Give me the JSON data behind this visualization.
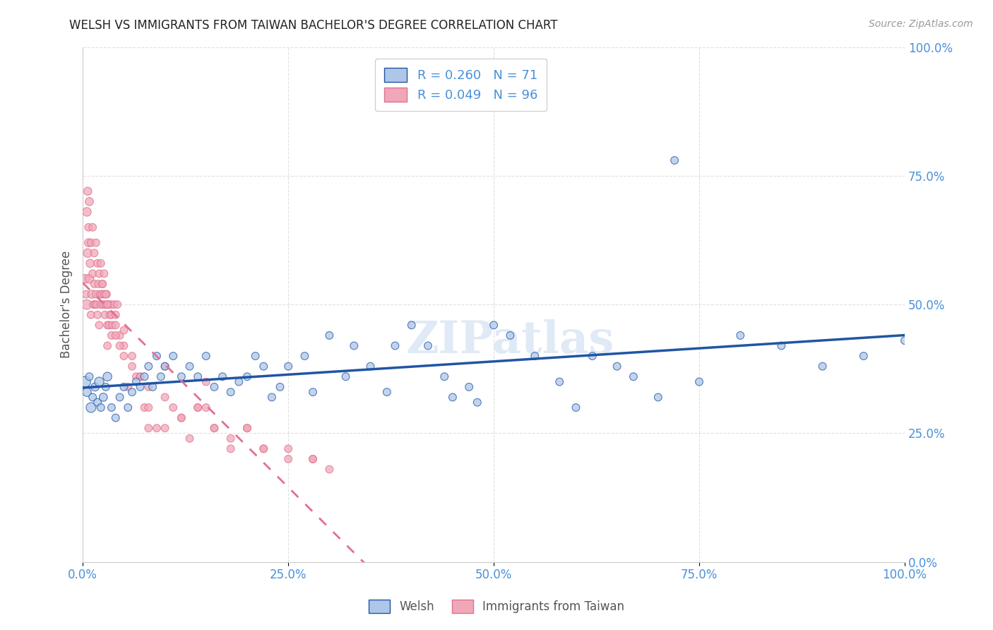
{
  "title": "WELSH VS IMMIGRANTS FROM TAIWAN BACHELOR'S DEGREE CORRELATION CHART",
  "source": "Source: ZipAtlas.com",
  "ylabel": "Bachelor's Degree",
  "legend_welsh": "Welsh",
  "legend_taiwan": "Immigrants from Taiwan",
  "welsh_R": "0.260",
  "welsh_N": "71",
  "taiwan_R": "0.049",
  "taiwan_N": "96",
  "welsh_color": "#aec6e8",
  "taiwan_color": "#f0a8b8",
  "welsh_line_color": "#2055a4",
  "taiwan_line_color": "#e07090",
  "watermark": "ZIPatlas",
  "welsh_x": [
    0.3,
    0.5,
    0.8,
    1.0,
    1.2,
    1.5,
    1.8,
    2.0,
    2.2,
    2.5,
    2.8,
    3.0,
    3.5,
    4.0,
    4.5,
    5.0,
    5.5,
    6.0,
    6.5,
    7.0,
    7.5,
    8.0,
    8.5,
    9.0,
    9.5,
    10.0,
    11.0,
    12.0,
    13.0,
    14.0,
    15.0,
    16.0,
    17.0,
    18.0,
    19.0,
    20.0,
    21.0,
    22.0,
    23.0,
    24.0,
    25.0,
    27.0,
    28.0,
    30.0,
    32.0,
    33.0,
    35.0,
    37.0,
    38.0,
    40.0,
    42.0,
    44.0,
    45.0,
    47.0,
    48.0,
    50.0,
    52.0,
    55.0,
    58.0,
    60.0,
    62.0,
    65.0,
    67.0,
    70.0,
    72.0,
    75.0,
    80.0,
    85.0,
    90.0,
    95.0,
    100.0
  ],
  "welsh_y": [
    35.0,
    33.0,
    36.0,
    30.0,
    32.0,
    34.0,
    31.0,
    35.0,
    30.0,
    32.0,
    34.0,
    36.0,
    30.0,
    28.0,
    32.0,
    34.0,
    30.0,
    33.0,
    35.0,
    34.0,
    36.0,
    38.0,
    34.0,
    40.0,
    36.0,
    38.0,
    40.0,
    36.0,
    38.0,
    36.0,
    40.0,
    34.0,
    36.0,
    33.0,
    35.0,
    36.0,
    40.0,
    38.0,
    32.0,
    34.0,
    38.0,
    40.0,
    33.0,
    44.0,
    36.0,
    42.0,
    38.0,
    33.0,
    42.0,
    46.0,
    42.0,
    36.0,
    32.0,
    34.0,
    31.0,
    46.0,
    44.0,
    40.0,
    35.0,
    30.0,
    40.0,
    38.0,
    36.0,
    32.0,
    78.0,
    35.0,
    44.0,
    42.0,
    38.0,
    40.0,
    43.0
  ],
  "welsh_size": [
    120,
    80,
    60,
    100,
    60,
    70,
    60,
    90,
    60,
    70,
    60,
    80,
    60,
    60,
    60,
    60,
    60,
    60,
    60,
    60,
    60,
    60,
    60,
    60,
    60,
    60,
    60,
    60,
    60,
    60,
    60,
    60,
    60,
    60,
    60,
    60,
    60,
    60,
    60,
    60,
    60,
    60,
    60,
    60,
    60,
    60,
    60,
    60,
    60,
    60,
    60,
    60,
    60,
    60,
    60,
    60,
    60,
    60,
    60,
    60,
    60,
    60,
    60,
    60,
    60,
    60,
    60,
    60,
    60,
    60,
    60
  ],
  "taiwan_x": [
    0.3,
    0.4,
    0.5,
    0.6,
    0.7,
    0.8,
    0.9,
    1.0,
    1.1,
    1.2,
    1.3,
    1.4,
    1.5,
    1.6,
    1.7,
    1.8,
    1.9,
    2.0,
    2.1,
    2.2,
    2.3,
    2.4,
    2.5,
    2.6,
    2.7,
    2.8,
    2.9,
    3.0,
    3.1,
    3.2,
    3.3,
    3.4,
    3.5,
    3.6,
    3.8,
    4.0,
    4.2,
    4.5,
    5.0,
    5.5,
    6.0,
    6.5,
    7.0,
    7.5,
    8.0,
    9.0,
    10.0,
    11.0,
    12.0,
    13.0,
    14.0,
    15.0,
    16.0,
    18.0,
    20.0,
    22.0,
    25.0,
    28.0,
    30.0,
    0.5,
    0.6,
    0.7,
    0.8,
    1.0,
    1.2,
    1.4,
    1.6,
    1.8,
    2.0,
    2.2,
    2.4,
    2.6,
    2.8,
    3.0,
    3.5,
    4.0,
    4.5,
    5.0,
    6.0,
    7.0,
    8.0,
    10.0,
    12.0,
    14.0,
    16.0,
    18.0,
    20.0,
    22.0,
    25.0,
    28.0,
    5.0,
    15.0,
    10.0,
    8.0,
    4.0,
    3.0
  ],
  "taiwan_y": [
    55.0,
    52.0,
    50.0,
    60.0,
    62.0,
    55.0,
    58.0,
    48.0,
    52.0,
    56.0,
    50.0,
    54.0,
    50.0,
    52.0,
    50.0,
    48.0,
    54.0,
    46.0,
    52.0,
    50.0,
    52.0,
    54.0,
    50.0,
    52.0,
    48.0,
    50.0,
    52.0,
    46.0,
    50.0,
    46.0,
    48.0,
    50.0,
    44.0,
    46.0,
    50.0,
    46.0,
    50.0,
    44.0,
    42.0,
    34.0,
    40.0,
    36.0,
    36.0,
    30.0,
    26.0,
    26.0,
    26.0,
    30.0,
    28.0,
    24.0,
    30.0,
    30.0,
    26.0,
    22.0,
    26.0,
    22.0,
    20.0,
    20.0,
    18.0,
    68.0,
    72.0,
    65.0,
    70.0,
    62.0,
    65.0,
    60.0,
    62.0,
    58.0,
    56.0,
    58.0,
    54.0,
    56.0,
    52.0,
    50.0,
    48.0,
    44.0,
    42.0,
    40.0,
    38.0,
    36.0,
    34.0,
    32.0,
    28.0,
    30.0,
    26.0,
    24.0,
    26.0,
    22.0,
    22.0,
    20.0,
    45.0,
    35.0,
    38.0,
    30.0,
    48.0,
    42.0
  ],
  "taiwan_size": [
    80,
    60,
    100,
    80,
    70,
    80,
    70,
    60,
    70,
    60,
    60,
    60,
    60,
    60,
    60,
    60,
    60,
    60,
    60,
    60,
    60,
    60,
    60,
    60,
    60,
    60,
    60,
    60,
    60,
    60,
    60,
    60,
    60,
    60,
    60,
    60,
    60,
    60,
    60,
    60,
    60,
    60,
    60,
    60,
    60,
    60,
    60,
    60,
    60,
    60,
    60,
    60,
    60,
    60,
    60,
    60,
    60,
    60,
    60,
    80,
    70,
    60,
    70,
    60,
    60,
    60,
    60,
    60,
    60,
    60,
    60,
    60,
    60,
    60,
    60,
    60,
    60,
    60,
    60,
    60,
    60,
    60,
    60,
    60,
    60,
    60,
    60,
    60,
    60,
    60,
    60,
    60,
    60,
    60,
    60,
    60
  ],
  "xlim": [
    0,
    100
  ],
  "ylim": [
    0,
    100
  ],
  "xticks": [
    0,
    25,
    50,
    75,
    100
  ],
  "yticks": [
    0,
    25,
    50,
    75,
    100
  ],
  "background_color": "#ffffff",
  "grid_color": "#cccccc"
}
